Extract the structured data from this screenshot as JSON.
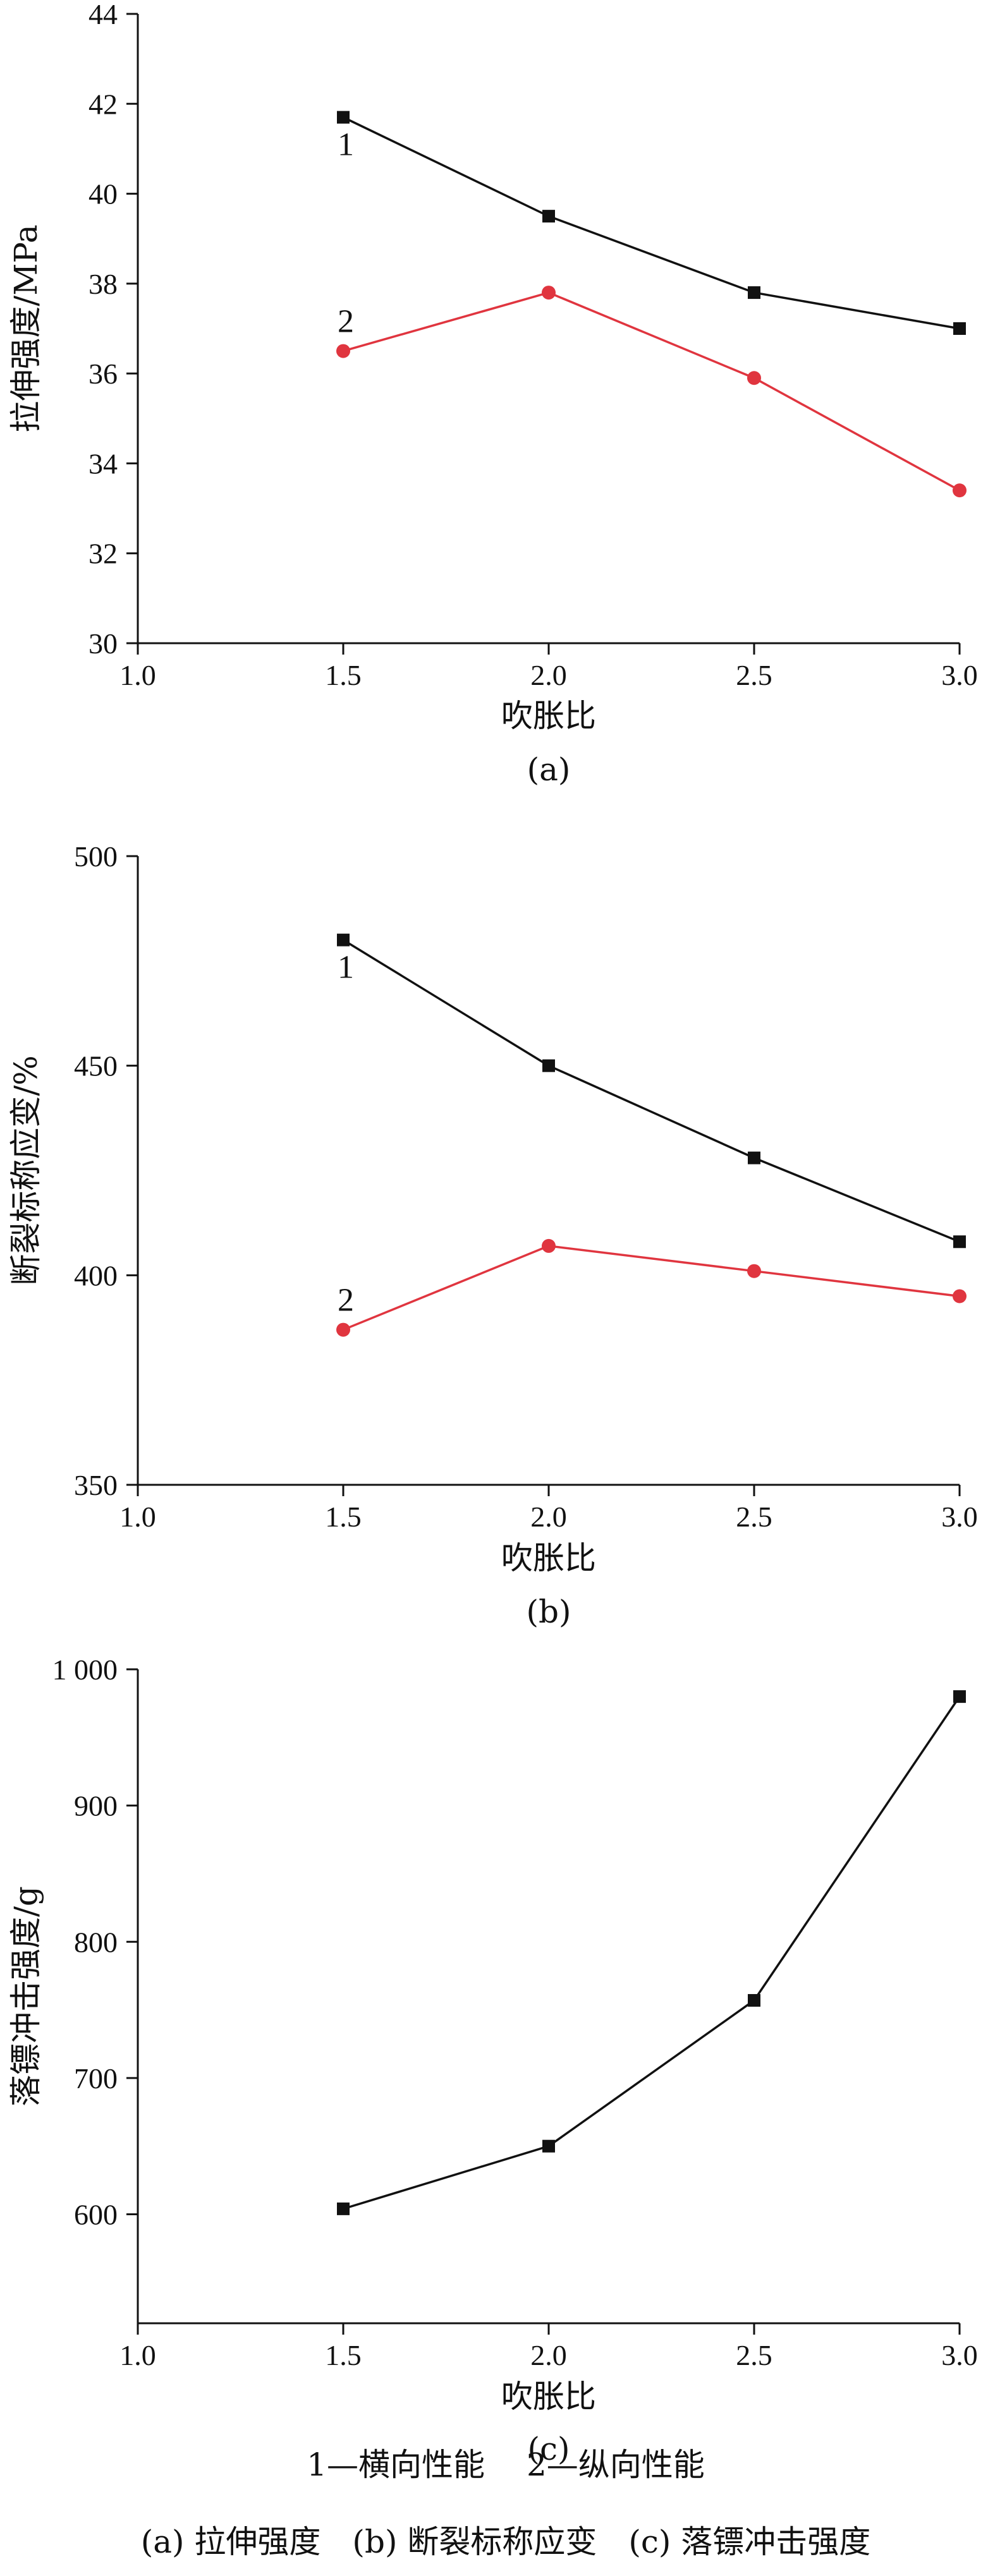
{
  "chart_data": [
    {
      "type": "line",
      "caption": "(a)",
      "xlabel": "吹胀比",
      "ylabel": "拉伸强度/MPa",
      "x": [
        1.5,
        2.0,
        2.5,
        3.0
      ],
      "xlim": [
        1.0,
        3.0
      ],
      "xticks": [
        "1.0",
        "1.5",
        "2.0",
        "2.5",
        "3.0"
      ],
      "ylim": [
        30,
        44
      ],
      "yticks": [
        "30",
        "32",
        "34",
        "36",
        "38",
        "40",
        "42",
        "44"
      ],
      "grid": false,
      "series": [
        {
          "name": "1",
          "color": "#111111",
          "marker": "square",
          "values": [
            41.7,
            39.5,
            37.8,
            37.0
          ]
        },
        {
          "name": "2",
          "color": "#e0353f",
          "marker": "circle",
          "values": [
            36.5,
            37.8,
            35.9,
            33.4
          ]
        }
      ]
    },
    {
      "type": "line",
      "caption": "(b)",
      "xlabel": "吹胀比",
      "ylabel": "断裂标称应变/%",
      "x": [
        1.5,
        2.0,
        2.5,
        3.0
      ],
      "xlim": [
        1.0,
        3.0
      ],
      "xticks": [
        "1.0",
        "1.5",
        "2.0",
        "2.5",
        "3.0"
      ],
      "ylim": [
        350,
        500
      ],
      "yticks": [
        "350",
        "400",
        "450",
        "500"
      ],
      "grid": false,
      "series": [
        {
          "name": "1",
          "color": "#111111",
          "marker": "square",
          "values": [
            480,
            450,
            428,
            408
          ]
        },
        {
          "name": "2",
          "color": "#e0353f",
          "marker": "circle",
          "values": [
            387,
            407,
            401,
            395
          ]
        }
      ]
    },
    {
      "type": "line",
      "caption": "(c)",
      "xlabel": "吹胀比",
      "ylabel": "落镖冲击强度/g",
      "x": [
        1.5,
        2.0,
        2.5,
        3.0
      ],
      "xlim": [
        1.0,
        3.0
      ],
      "xticks": [
        "1.0",
        "1.5",
        "2.0",
        "2.5",
        "3.0"
      ],
      "ylim": [
        520,
        1000
      ],
      "yticks": [
        "600",
        "700",
        "800",
        "900",
        "1 000"
      ],
      "ytick_values": [
        600,
        700,
        800,
        900,
        1000
      ],
      "grid": false,
      "series": [
        {
          "color": "#111111",
          "marker": "square",
          "values": [
            604,
            650,
            757,
            980
          ]
        }
      ]
    }
  ],
  "legend": {
    "line1": "1—横向性能　 2—纵向性能",
    "line2": "(a) 拉伸强度　(b) 断裂标称应变　(c) 落镖冲击强度"
  }
}
